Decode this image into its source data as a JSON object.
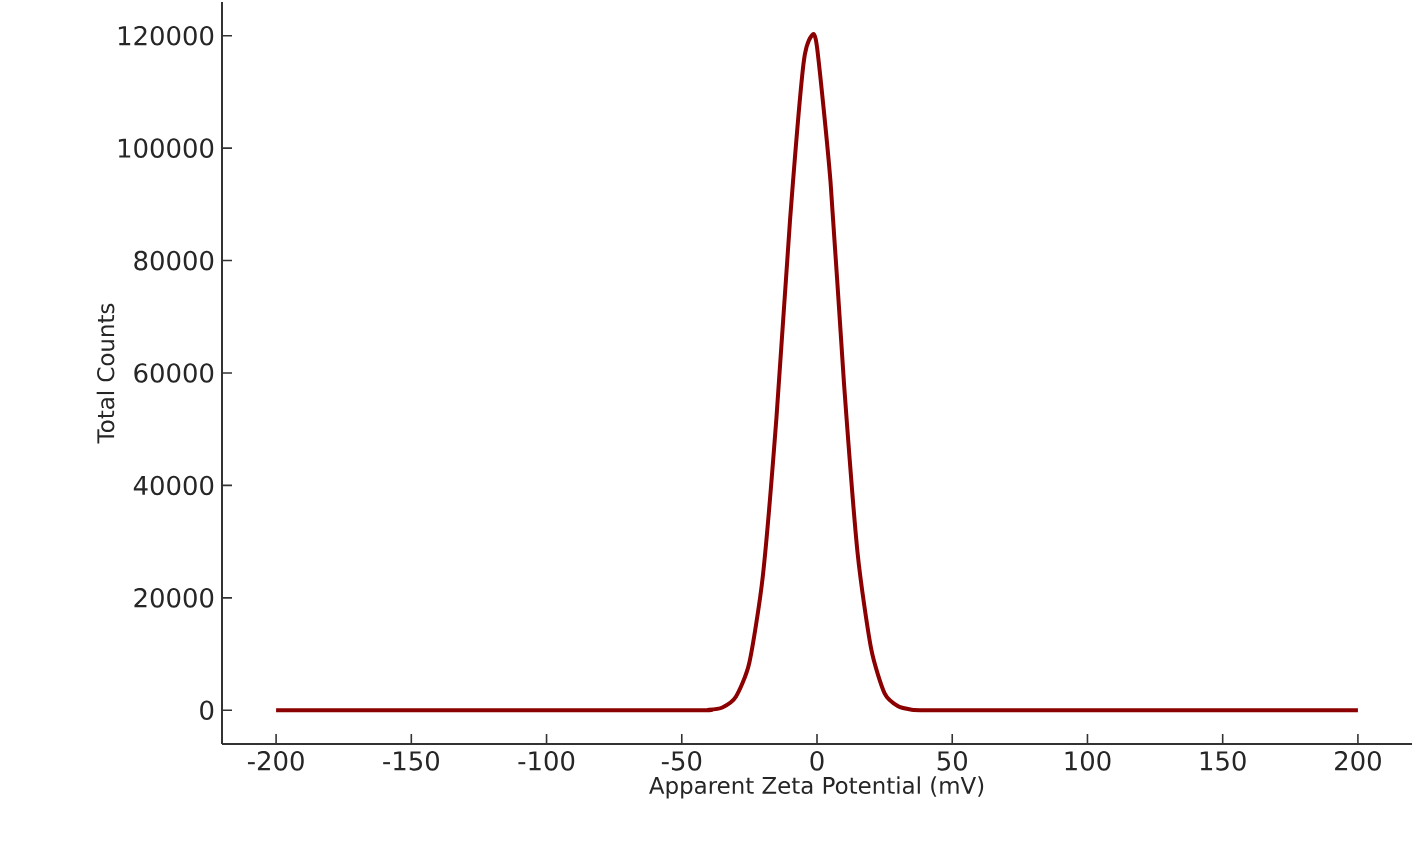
{
  "chart_data": {
    "type": "line",
    "xlabel": "Apparent Zeta Potential (mV)",
    "ylabel": "Total Counts",
    "x": [
      -200,
      -50,
      -40,
      -35,
      -30,
      -25,
      -20,
      -15,
      -10,
      -5,
      -2,
      0,
      5,
      10,
      15,
      20,
      25,
      30,
      35,
      40,
      50,
      200
    ],
    "series": [
      {
        "color": "#8b0000",
        "values": [
          0,
          0,
          100,
          500,
          2400,
          8500,
          24000,
          52000,
          87000,
          115000,
          120000,
          118000,
          94000,
          58000,
          28000,
          11000,
          3000,
          700,
          100,
          0,
          0,
          0
        ]
      }
    ],
    "xlim": [
      -220,
      220
    ],
    "ylim": [
      -6000,
      126000
    ],
    "xticks": [
      -200,
      -150,
      -100,
      -50,
      0,
      50,
      100,
      150,
      200
    ],
    "yticks": [
      0,
      20000,
      40000,
      60000,
      80000,
      100000,
      120000
    ],
    "marker": "none",
    "line_style": "solid"
  }
}
